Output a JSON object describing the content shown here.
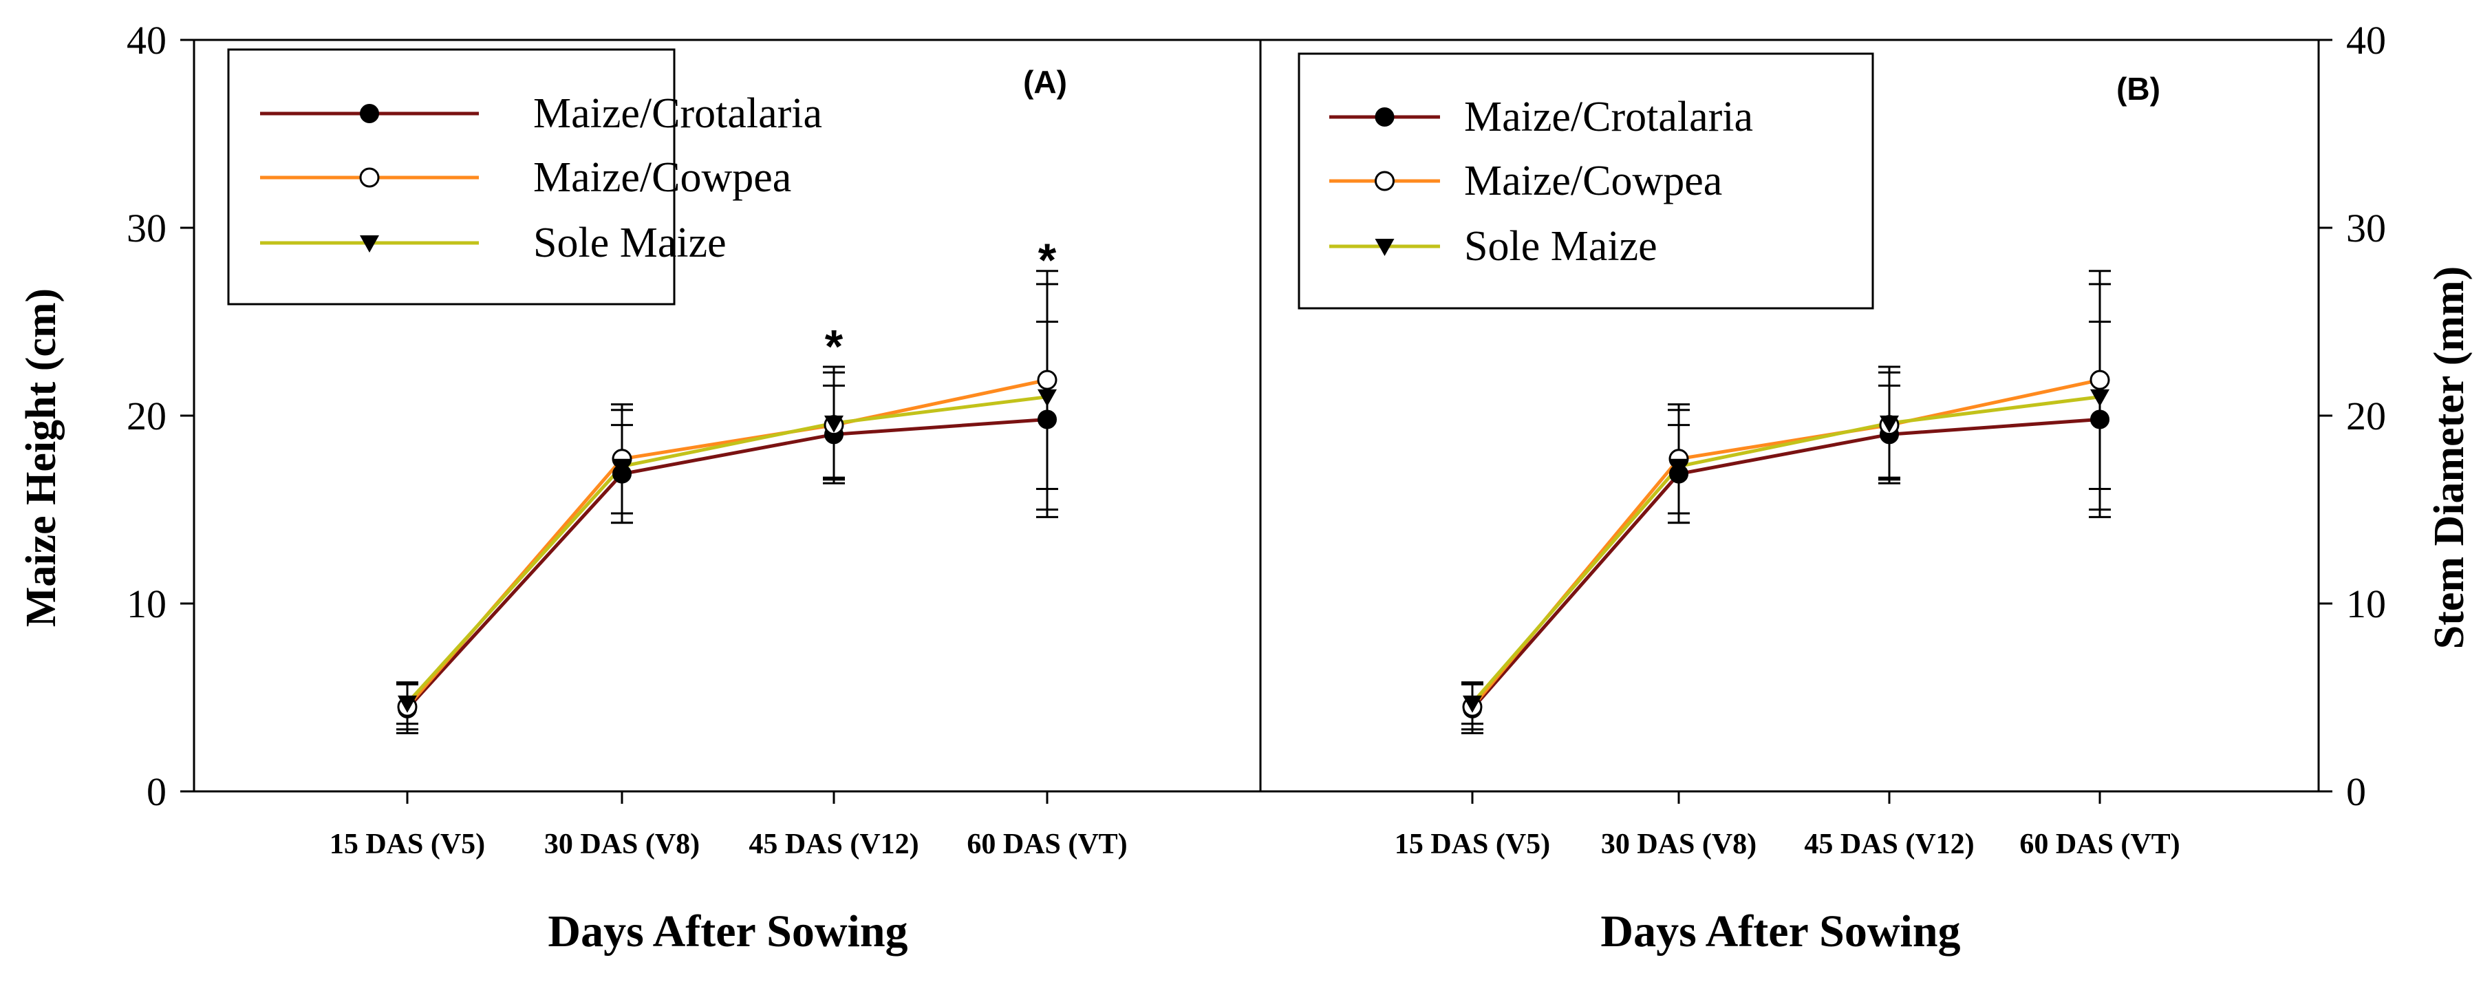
{
  "figure": {
    "x_title": "Days After Sowing",
    "left_y_title": "Maize Height (cm)",
    "right_y_title": "Stem Diameter (mm)"
  },
  "colors": {
    "axis": "#000000",
    "crotalaria": "#7a1212",
    "cowpea": "#ff8a1e",
    "sole": "#c2c21a"
  },
  "chart_data": [
    {
      "type": "line",
      "panel_label": "(A)",
      "title": "",
      "xlabel": "Days After Sowing",
      "ylabel": "Maize Height (cm)",
      "categories": [
        "15 DAS (V5)",
        "30 DAS (V8)",
        "45 DAS (V12)",
        "60 DAS (VT)"
      ],
      "ylim": [
        0,
        40
      ],
      "yticks": [
        0,
        10,
        20,
        30,
        40
      ],
      "grid": false,
      "legend_position": "top-left",
      "annotations": [
        {
          "category": "45 DAS (V12)",
          "text": "*",
          "y": 24.3
        },
        {
          "category": "60 DAS (VT)",
          "text": "*",
          "y": 28.9
        }
      ],
      "series": [
        {
          "name": "Maize/Crotalaria",
          "marker": "filled-circle",
          "color_key": "crotalaria",
          "values": [
            4.4,
            16.9,
            19.0,
            19.8
          ],
          "error": [
            1.3,
            2.6,
            2.6,
            5.2
          ]
        },
        {
          "name": "Maize/Cowpea",
          "marker": "open-circle",
          "color_key": "cowpea",
          "values": [
            4.5,
            17.7,
            19.5,
            21.9
          ],
          "error": [
            1.2,
            2.9,
            2.8,
            5.8
          ]
        },
        {
          "name": "Sole Maize",
          "marker": "triangle-down",
          "color_key": "sole",
          "values": [
            4.7,
            17.3,
            19.6,
            21.0
          ],
          "error": [
            1.1,
            3.0,
            3.0,
            6.0
          ]
        }
      ]
    },
    {
      "type": "line",
      "panel_label": "(B)",
      "title": "",
      "xlabel": "Days After Sowing",
      "ylabel": "Stem Diameter (mm)",
      "categories": [
        "15 DAS (V5)",
        "30 DAS (V8)",
        "45 DAS (V12)",
        "60 DAS (VT)"
      ],
      "ylim": [
        0,
        40
      ],
      "yticks": [
        0,
        10,
        20,
        30,
        40
      ],
      "grid": false,
      "legend_position": "top-left",
      "annotations": [],
      "series": [
        {
          "name": "Maize/Crotalaria",
          "marker": "filled-circle",
          "color_key": "crotalaria",
          "values": [
            4.4,
            16.9,
            19.0,
            19.8
          ],
          "error": [
            1.3,
            2.6,
            2.6,
            5.2
          ]
        },
        {
          "name": "Maize/Cowpea",
          "marker": "open-circle",
          "color_key": "cowpea",
          "values": [
            4.5,
            17.7,
            19.5,
            21.9
          ],
          "error": [
            1.2,
            2.9,
            2.8,
            5.8
          ]
        },
        {
          "name": "Sole Maize",
          "marker": "triangle-down",
          "color_key": "sole",
          "values": [
            4.7,
            17.3,
            19.6,
            21.0
          ],
          "error": [
            1.1,
            3.0,
            3.0,
            6.0
          ]
        }
      ]
    }
  ]
}
